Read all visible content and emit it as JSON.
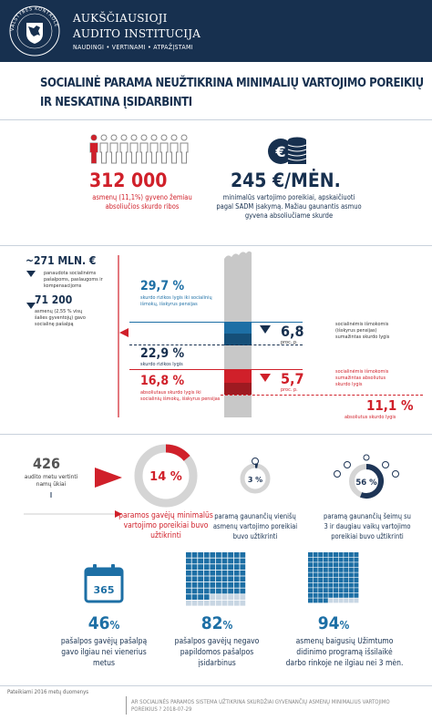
{
  "header": {
    "seal_text": "VALSTYBĖS KONTROLĖ",
    "org_line1": "AUKŠČIAUSIOJI",
    "org_line2": "AUDITO INSTITUCIJA",
    "motto": "NAUDINGI • VERTINAMI • ATPAŽĮSTAMI"
  },
  "title": {
    "line1": "SOCIALINĖ PARAMA NEUŽTIKRINA MINIMALIŲ VARTOJIMO POREIKIŲ",
    "line2": "IR NESKATINA ĮSIDARBINTI"
  },
  "poverty": {
    "value": "312 000",
    "caption1": "asmenų (11,1%) gyveno žemiau",
    "caption2": "absoliučios skurdo ribos"
  },
  "monthly": {
    "value": "245 €/MĖN.",
    "caption1": "minimalūs vartojimo poreikiai, apskaičiuoti",
    "caption2": "pagal SADM įsakymą. Mažiau gaunantis asmuo",
    "caption3": "gyvena absoliučiame skurde"
  },
  "spending": {
    "value": "~271 MLN. €",
    "caption1": "panaudota socialinėms",
    "caption2": "pašalpoms, paslaugoms ir",
    "caption3": "kompensacijoms"
  },
  "recipients": {
    "value": "71 200",
    "caption1": "asmenų (2,55 % visų",
    "caption2": "šalies gyventojų) gavo",
    "caption3": "socialinę pašalpą"
  },
  "risk_before": {
    "value": "29,7 %",
    "caption1": "skurdo rizikos lygis iki socialinių",
    "caption2": "išmokų, išskyrus pensijas"
  },
  "risk_after": {
    "value": "22,9 %",
    "caption": "skurdo rizikos lygis"
  },
  "risk_reduction": {
    "value": "6,8",
    "unit": "proc. p.",
    "caption1": "socialinėmis išmokomis",
    "caption2": "(išskyrus pensijas)",
    "caption3": "sumažintas skurdo lygis"
  },
  "abs_before": {
    "value": "16,8 %",
    "caption1": "absoliutaus skurdo lygis iki",
    "caption2": "socialinių išmokų, išskyrus pensijas"
  },
  "abs_reduction": {
    "value": "5,7",
    "unit": "proc. p.",
    "caption1": "socialinėmis išmokomis",
    "caption2": "sumažintas absoliutus",
    "caption3": "skurdo lygis"
  },
  "abs_after": {
    "value": "11,1 %",
    "caption": "absoliutus skurdo lygis"
  },
  "households": {
    "value": "426",
    "caption1": "audito metu vertinti",
    "caption2": "namų ūkiai"
  },
  "donut_main": {
    "value": "14 %",
    "fraction": 0.14,
    "caption1": "paramos gavėjų minimalūs",
    "caption2": "vartojimo poreikiai buvo",
    "caption3": "užtikrinti"
  },
  "donut_single": {
    "value": "3 %",
    "fraction": 0.03,
    "caption1": "paramą gaunančių vienišų",
    "caption2": "asmenų vartojimo poreikiai",
    "caption3": "buvo užtikrinti"
  },
  "donut_family": {
    "value": "56 %",
    "fraction": 0.56,
    "caption1": "paramą gaunančių šeimų su",
    "caption2": "3 ir daugiau vaikų vartojimo",
    "caption3": "poreikiai buvo užtikrinti"
  },
  "stat_calendar": {
    "icon_text": "365",
    "value": "46",
    "unit": "%",
    "caption1": "pašalpos gavėjų pašalpą",
    "caption2": "gavo ilgiau nei vienerius",
    "caption3": "metus",
    "fraction": 0.46
  },
  "stat_grid1": {
    "value": "82",
    "unit": "%",
    "caption1": "pašalpos gavėjų negavo",
    "caption2": "papildomos pašalpos",
    "caption3": "įsidarbinus",
    "fraction": 0.82
  },
  "stat_grid2": {
    "value": "94",
    "unit": "%",
    "caption1": "asmenų baigusių Užimtumo",
    "caption2": "didinimo programą išsilaikė",
    "caption3": "darbo rinkoje ne ilgiau nei 3 mėn.",
    "fraction": 0.94
  },
  "footer": {
    "note": "Pateikiami 2016 metų duomenys",
    "report1": "AR SOCIALINĖS PARAMOS SISTEMA UŽTIKRINA SKURDŽIAI GYVENANČIŲ ASMENŲ MINIMALIUS VARTOJIMO",
    "report2": "POREIKIUS ? 2018-07-29"
  },
  "colors": {
    "navy": "#17304f",
    "red": "#d0202a",
    "blue": "#1d6fa5",
    "gray": "#c8c8c8"
  }
}
